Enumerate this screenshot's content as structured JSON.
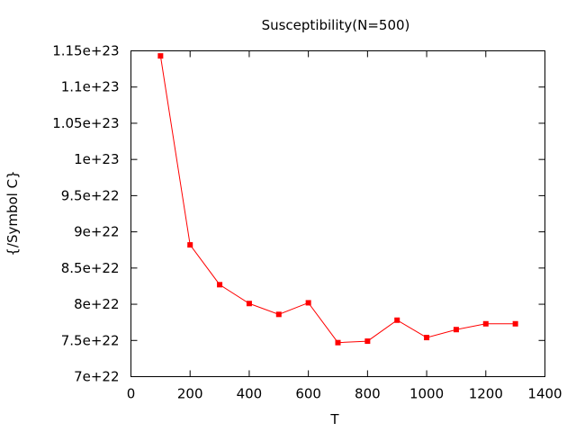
{
  "chart_data": {
    "type": "line",
    "title": "Susceptibility(N=500)",
    "xlabel": "T",
    "ylabel": "{/Symbol C}",
    "xlim": [
      0,
      1400
    ],
    "ylim": [
      7e+22,
      1.15e+23
    ],
    "x_ticks": [
      "0",
      "200",
      "400",
      "600",
      "800",
      "1000",
      "1200",
      "1400"
    ],
    "y_ticks": [
      "7e+22",
      "7.5e+22",
      "8e+22",
      "8.5e+22",
      "9e+22",
      "9.5e+22",
      "1e+23",
      "1.05e+23",
      "1.1e+23",
      "1.15e+23"
    ],
    "grid": false,
    "legend": "none",
    "series": [
      {
        "color": "#ff0000",
        "marker": "square",
        "x": [
          100,
          200,
          300,
          400,
          500,
          600,
          700,
          800,
          900,
          1000,
          1100,
          1200,
          1300
        ],
        "y": [
          1.143e+23,
          8.82e+22,
          8.27e+22,
          8.01e+22,
          7.86e+22,
          8.02e+22,
          7.47e+22,
          7.49e+22,
          7.78e+22,
          7.54e+22,
          7.65e+22,
          7.73e+22,
          7.73e+22
        ]
      }
    ]
  }
}
